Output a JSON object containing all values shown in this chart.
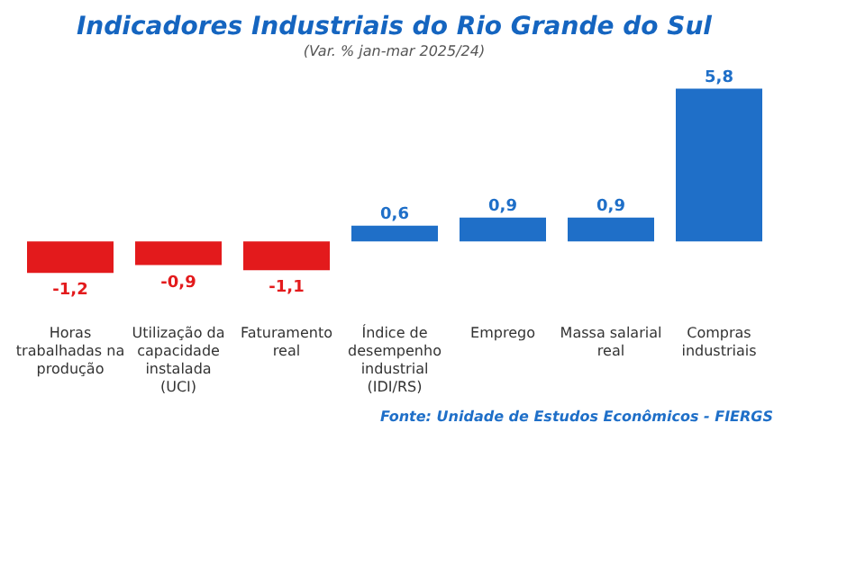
{
  "chart_data": {
    "type": "bar",
    "title": "Indicadores Industriais do Rio Grande do Sul",
    "subtitle": "(Var. % jan-mar 2025/24)",
    "categories": [
      "Horas trabalhadas na produção",
      "Utilização da capacidade instalada (UCI)",
      "Faturamento real",
      "Índice de desempenho industrial (IDI/RS)",
      "Emprego",
      "Massa salarial real",
      "Compras industriais"
    ],
    "values": [
      -1.2,
      -0.9,
      -1.1,
      0.6,
      0.9,
      0.9,
      5.8
    ],
    "colors": [
      "#e31a1c",
      "#e31a1c",
      "#e31a1c",
      "#1f6fc8",
      "#1f6fc8",
      "#1f6fc8",
      "#1f6fc8"
    ],
    "value_labels": [
      "-1,2",
      "-0,9",
      "-1,1",
      "0,6",
      "0,9",
      "0,9",
      "5,8"
    ],
    "annotations": [
      "Fonte: Unidade de Estudos Econômicos - FIERGS"
    ]
  }
}
